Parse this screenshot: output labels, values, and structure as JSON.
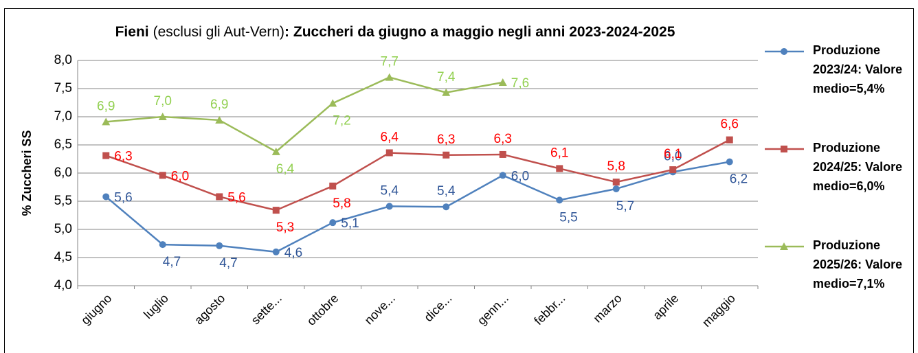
{
  "chart_data": {
    "type": "line",
    "title": [
      "Fieni",
      "(esclusi gli Aut-Vern)",
      ": Zuccheri da giugno a maggio negli anni 2023-2024-2025"
    ],
    "y_label": "% Zuccheri SS",
    "categories": [
      "giugno",
      "luglio",
      "agosto",
      "sette...",
      "ottobre",
      "nove...",
      "dice...",
      "genn...",
      "febbr...",
      "marzo",
      "aprile",
      "maggio"
    ],
    "series": [
      {
        "name": "Produzione 2023/24: Valore medio=5,4%",
        "color": "#4f81bd",
        "label_color": "#2f5597",
        "marker": "circle",
        "values": [
          5.58,
          4.73,
          4.71,
          4.6,
          5.12,
          5.41,
          5.4,
          5.96,
          5.52,
          5.72,
          6.02,
          6.2
        ],
        "value_labels": [
          "5,6",
          "4,7",
          "4,7",
          "4,6",
          "5,1",
          "5,4",
          "5,4",
          "6,0",
          "5,5",
          "5,7",
          "6,0",
          "6,2"
        ]
      },
      {
        "name": "Produzione 2024/25: Valore medio=6,0%",
        "color": "#c0504d",
        "label_color": "#ff0000",
        "marker": "square",
        "values": [
          6.31,
          5.96,
          5.58,
          5.34,
          5.77,
          6.36,
          6.32,
          6.33,
          6.08,
          5.84,
          6.06,
          6.59
        ],
        "value_labels": [
          "6,3",
          "6,0",
          "5,6",
          "5,3",
          "5,8",
          "6,4",
          "6,3",
          "6,3",
          "6,1",
          "5,8",
          "6,1",
          "6,6"
        ]
      },
      {
        "name": "Produzione 2025/26: Valore medio=7,1%",
        "color": "#9bbb59",
        "label_color": "#92d050",
        "marker": "triangle",
        "values": [
          6.91,
          7.0,
          6.94,
          6.38,
          7.24,
          7.7,
          7.43,
          7.61,
          null,
          null,
          null,
          null
        ],
        "value_labels": [
          "6,9",
          "7,0",
          "6,9",
          "6,4",
          "7,2",
          "7,7",
          "7,4",
          "7,6",
          null,
          null,
          null,
          null
        ]
      }
    ],
    "ylim": [
      4,
      8
    ],
    "yticks": [
      {
        "value": 4,
        "label": "4,0"
      },
      {
        "value": 4.5,
        "label": "4,5"
      },
      {
        "value": 5,
        "label": "5,0"
      },
      {
        "value": 5.5,
        "label": "5,5"
      },
      {
        "value": 6,
        "label": "6,0"
      },
      {
        "value": 6.5,
        "label": "6,5"
      },
      {
        "value": 7,
        "label": "7,0"
      },
      {
        "value": 7.5,
        "label": "7,5"
      },
      {
        "value": 8,
        "label": "8,0"
      }
    ],
    "grid": true,
    "legend": "right"
  }
}
